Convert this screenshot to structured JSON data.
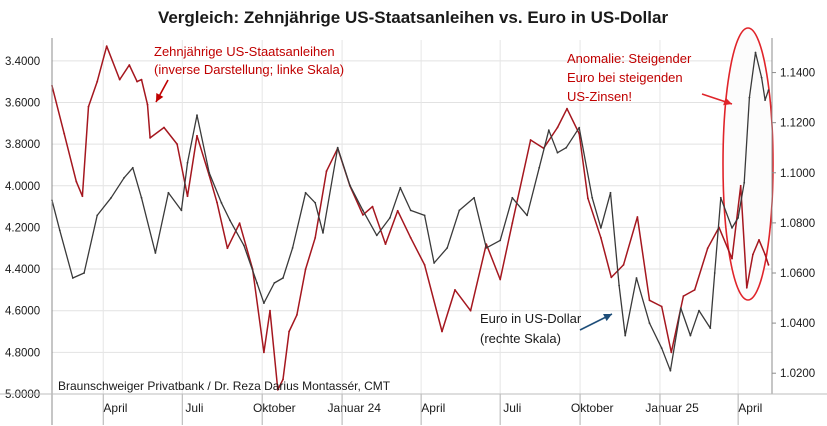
{
  "chart_data": {
    "type": "line",
    "title": "Vergleich: Zehnjährige US-Staatsanleihen vs. Euro in US-Dollar",
    "credit": "Braunschweiger Privatbank / Dr. Reza Darius Montassér, CMT",
    "x_tick_labels": [
      "April",
      "Juli",
      "Oktober",
      "Januar 24",
      "April",
      "Juli",
      "Oktober",
      "Januar 25",
      "April"
    ],
    "x_tick_dates": [
      "2023-04-15",
      "2023-07-15",
      "2023-10-15",
      "2024-01-15",
      "2024-04-15",
      "2024-07-15",
      "2024-10-15",
      "2025-01-15",
      "2025-04-15"
    ],
    "x_range": [
      "2023-02-01",
      "2025-05-10"
    ],
    "left_axis": {
      "tick_labels": [
        "3.4000",
        "3.6000",
        "3.8000",
        "4.0000",
        "4.2000",
        "4.4000",
        "4.6000",
        "4.8000",
        "5.0000"
      ],
      "range": [
        3.3,
        5.0
      ],
      "inverted": true
    },
    "right_axis": {
      "tick_labels": [
        "1.1400",
        "1.1200",
        "1.1000",
        "1.0800",
        "1.0600",
        "1.0400",
        "1.0200"
      ],
      "range": [
        1.0117,
        1.153
      ]
    },
    "grid": true,
    "series": [
      {
        "name": "Zehnjährige US-Staatsanleihen (inverse Darstellung; linke Skala)",
        "axis": "left",
        "color": "#a5171f",
        "points": [
          [
            "2023-02-01",
            3.52
          ],
          [
            "2023-02-15",
            3.75
          ],
          [
            "2023-03-01",
            3.98
          ],
          [
            "2023-03-08",
            4.05
          ],
          [
            "2023-03-15",
            3.62
          ],
          [
            "2023-03-25",
            3.5
          ],
          [
            "2023-04-05",
            3.33
          ],
          [
            "2023-04-20",
            3.49
          ],
          [
            "2023-05-01",
            3.42
          ],
          [
            "2023-05-10",
            3.5
          ],
          [
            "2023-05-15",
            3.49
          ],
          [
            "2023-05-22",
            3.61
          ],
          [
            "2023-05-25",
            3.77
          ],
          [
            "2023-06-10",
            3.72
          ],
          [
            "2023-06-25",
            3.8
          ],
          [
            "2023-07-07",
            4.05
          ],
          [
            "2023-07-18",
            3.76
          ],
          [
            "2023-08-01",
            3.95
          ],
          [
            "2023-08-10",
            4.08
          ],
          [
            "2023-08-22",
            4.3
          ],
          [
            "2023-09-05",
            4.18
          ],
          [
            "2023-09-20",
            4.4
          ],
          [
            "2023-10-03",
            4.8
          ],
          [
            "2023-10-10",
            4.6
          ],
          [
            "2023-10-19",
            4.98
          ],
          [
            "2023-10-25",
            4.93
          ],
          [
            "2023-11-01",
            4.7
          ],
          [
            "2023-11-10",
            4.62
          ],
          [
            "2023-11-20",
            4.4
          ],
          [
            "2023-12-01",
            4.25
          ],
          [
            "2023-12-14",
            3.93
          ],
          [
            "2023-12-27",
            3.82
          ],
          [
            "2024-01-10",
            4.0
          ],
          [
            "2024-01-25",
            4.14
          ],
          [
            "2024-02-05",
            4.1
          ],
          [
            "2024-02-20",
            4.28
          ],
          [
            "2024-03-05",
            4.12
          ],
          [
            "2024-03-20",
            4.25
          ],
          [
            "2024-04-05",
            4.38
          ],
          [
            "2024-04-25",
            4.7
          ],
          [
            "2024-05-10",
            4.5
          ],
          [
            "2024-05-28",
            4.6
          ],
          [
            "2024-06-15",
            4.28
          ],
          [
            "2024-07-01",
            4.45
          ],
          [
            "2024-07-15",
            4.18
          ],
          [
            "2024-08-05",
            3.78
          ],
          [
            "2024-08-20",
            3.82
          ],
          [
            "2024-09-05",
            3.72
          ],
          [
            "2024-09-16",
            3.63
          ],
          [
            "2024-09-30",
            3.75
          ],
          [
            "2024-10-10",
            4.06
          ],
          [
            "2024-10-25",
            4.25
          ],
          [
            "2024-11-06",
            4.44
          ],
          [
            "2024-11-20",
            4.38
          ],
          [
            "2024-12-06",
            4.15
          ],
          [
            "2024-12-20",
            4.55
          ],
          [
            "2025-01-03",
            4.58
          ],
          [
            "2025-01-14",
            4.8
          ],
          [
            "2025-01-28",
            4.53
          ],
          [
            "2025-02-10",
            4.5
          ],
          [
            "2025-02-25",
            4.3
          ],
          [
            "2025-03-10",
            4.2
          ],
          [
            "2025-03-25",
            4.35
          ],
          [
            "2025-04-04",
            4.0
          ],
          [
            "2025-04-11",
            4.49
          ],
          [
            "2025-04-18",
            4.33
          ],
          [
            "2025-04-25",
            4.26
          ],
          [
            "2025-05-02",
            4.33
          ],
          [
            "2025-05-06",
            4.38
          ]
        ]
      },
      {
        "name": "Euro in US-Dollar (rechte Skala)",
        "axis": "right",
        "color": "#3a3a3a",
        "points": [
          [
            "2023-02-01",
            1.089
          ],
          [
            "2023-02-10",
            1.077
          ],
          [
            "2023-02-25",
            1.058
          ],
          [
            "2023-03-10",
            1.06
          ],
          [
            "2023-03-25",
            1.083
          ],
          [
            "2023-04-10",
            1.09
          ],
          [
            "2023-04-25",
            1.098
          ],
          [
            "2023-05-05",
            1.102
          ],
          [
            "2023-05-15",
            1.09
          ],
          [
            "2023-05-31",
            1.068
          ],
          [
            "2023-06-15",
            1.092
          ],
          [
            "2023-06-30",
            1.085
          ],
          [
            "2023-07-07",
            1.104
          ],
          [
            "2023-07-18",
            1.123
          ],
          [
            "2023-08-01",
            1.1
          ],
          [
            "2023-08-15",
            1.088
          ],
          [
            "2023-08-25",
            1.081
          ],
          [
            "2023-09-10",
            1.071
          ],
          [
            "2023-09-25",
            1.056
          ],
          [
            "2023-10-03",
            1.048
          ],
          [
            "2023-10-15",
            1.056
          ],
          [
            "2023-10-25",
            1.058
          ],
          [
            "2023-11-05",
            1.07
          ],
          [
            "2023-11-20",
            1.092
          ],
          [
            "2023-12-01",
            1.088
          ],
          [
            "2023-12-10",
            1.076
          ],
          [
            "2023-12-27",
            1.11
          ],
          [
            "2024-01-10",
            1.095
          ],
          [
            "2024-01-25",
            1.085
          ],
          [
            "2024-02-10",
            1.075
          ],
          [
            "2024-02-25",
            1.082
          ],
          [
            "2024-03-08",
            1.094
          ],
          [
            "2024-03-20",
            1.085
          ],
          [
            "2024-04-05",
            1.083
          ],
          [
            "2024-04-16",
            1.064
          ],
          [
            "2024-05-01",
            1.07
          ],
          [
            "2024-05-15",
            1.085
          ],
          [
            "2024-06-01",
            1.09
          ],
          [
            "2024-06-15",
            1.07
          ],
          [
            "2024-07-01",
            1.073
          ],
          [
            "2024-07-15",
            1.09
          ],
          [
            "2024-08-01",
            1.083
          ],
          [
            "2024-08-15",
            1.102
          ],
          [
            "2024-08-26",
            1.117
          ],
          [
            "2024-09-05",
            1.108
          ],
          [
            "2024-09-15",
            1.11
          ],
          [
            "2024-09-30",
            1.118
          ],
          [
            "2024-10-15",
            1.09
          ],
          [
            "2024-10-25",
            1.078
          ],
          [
            "2024-11-05",
            1.092
          ],
          [
            "2024-11-15",
            1.055
          ],
          [
            "2024-11-22",
            1.035
          ],
          [
            "2024-12-05",
            1.058
          ],
          [
            "2024-12-20",
            1.04
          ],
          [
            "2025-01-03",
            1.03
          ],
          [
            "2025-01-13",
            1.021
          ],
          [
            "2025-01-25",
            1.046
          ],
          [
            "2025-02-05",
            1.035
          ],
          [
            "2025-02-15",
            1.045
          ],
          [
            "2025-02-28",
            1.038
          ],
          [
            "2025-03-05",
            1.06
          ],
          [
            "2025-03-12",
            1.09
          ],
          [
            "2025-03-25",
            1.078
          ],
          [
            "2025-04-01",
            1.082
          ],
          [
            "2025-04-08",
            1.096
          ],
          [
            "2025-04-14",
            1.13
          ],
          [
            "2025-04-21",
            1.148
          ],
          [
            "2025-04-28",
            1.138
          ],
          [
            "2025-05-02",
            1.129
          ],
          [
            "2025-05-06",
            1.133
          ]
        ]
      }
    ],
    "annotations": [
      {
        "text_lines": [
          "Zehnjährige US-Staatsanleihen",
          "(inverse Darstellung; linke Skala)"
        ],
        "color": "#c00000"
      },
      {
        "text_lines": [
          "Anomalie: Steigender",
          "Euro bei steigenden",
          "US-Zinsen!"
        ],
        "color": "#c00000"
      },
      {
        "text_lines": [
          "Euro in US-Dollar",
          "(rechte Skala)"
        ],
        "color": "#1a1a1a",
        "arrow_color": "#1f4e79"
      }
    ]
  }
}
